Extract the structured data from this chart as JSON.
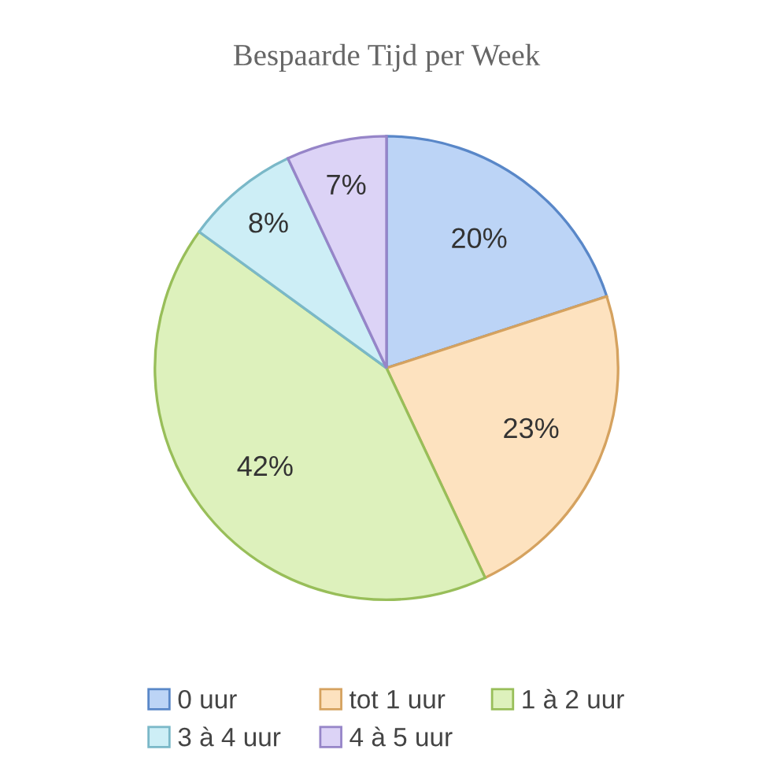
{
  "chart_data": {
    "type": "pie",
    "title": "Bespaarde Tijd per Week",
    "categories": [
      "0 uur",
      "tot 1 uur",
      "1 à 2 uur",
      "3 à 4 uur",
      "4 à 5 uur"
    ],
    "values": [
      20,
      23,
      42,
      8,
      7
    ],
    "value_labels": [
      "20%",
      "23%",
      "42%",
      "8%",
      "7%"
    ],
    "colors": [
      "#bcd4f6",
      "#fde2bf",
      "#ddf1bc",
      "#cdeef6",
      "#dcd3f6"
    ],
    "legend": "bottom"
  }
}
